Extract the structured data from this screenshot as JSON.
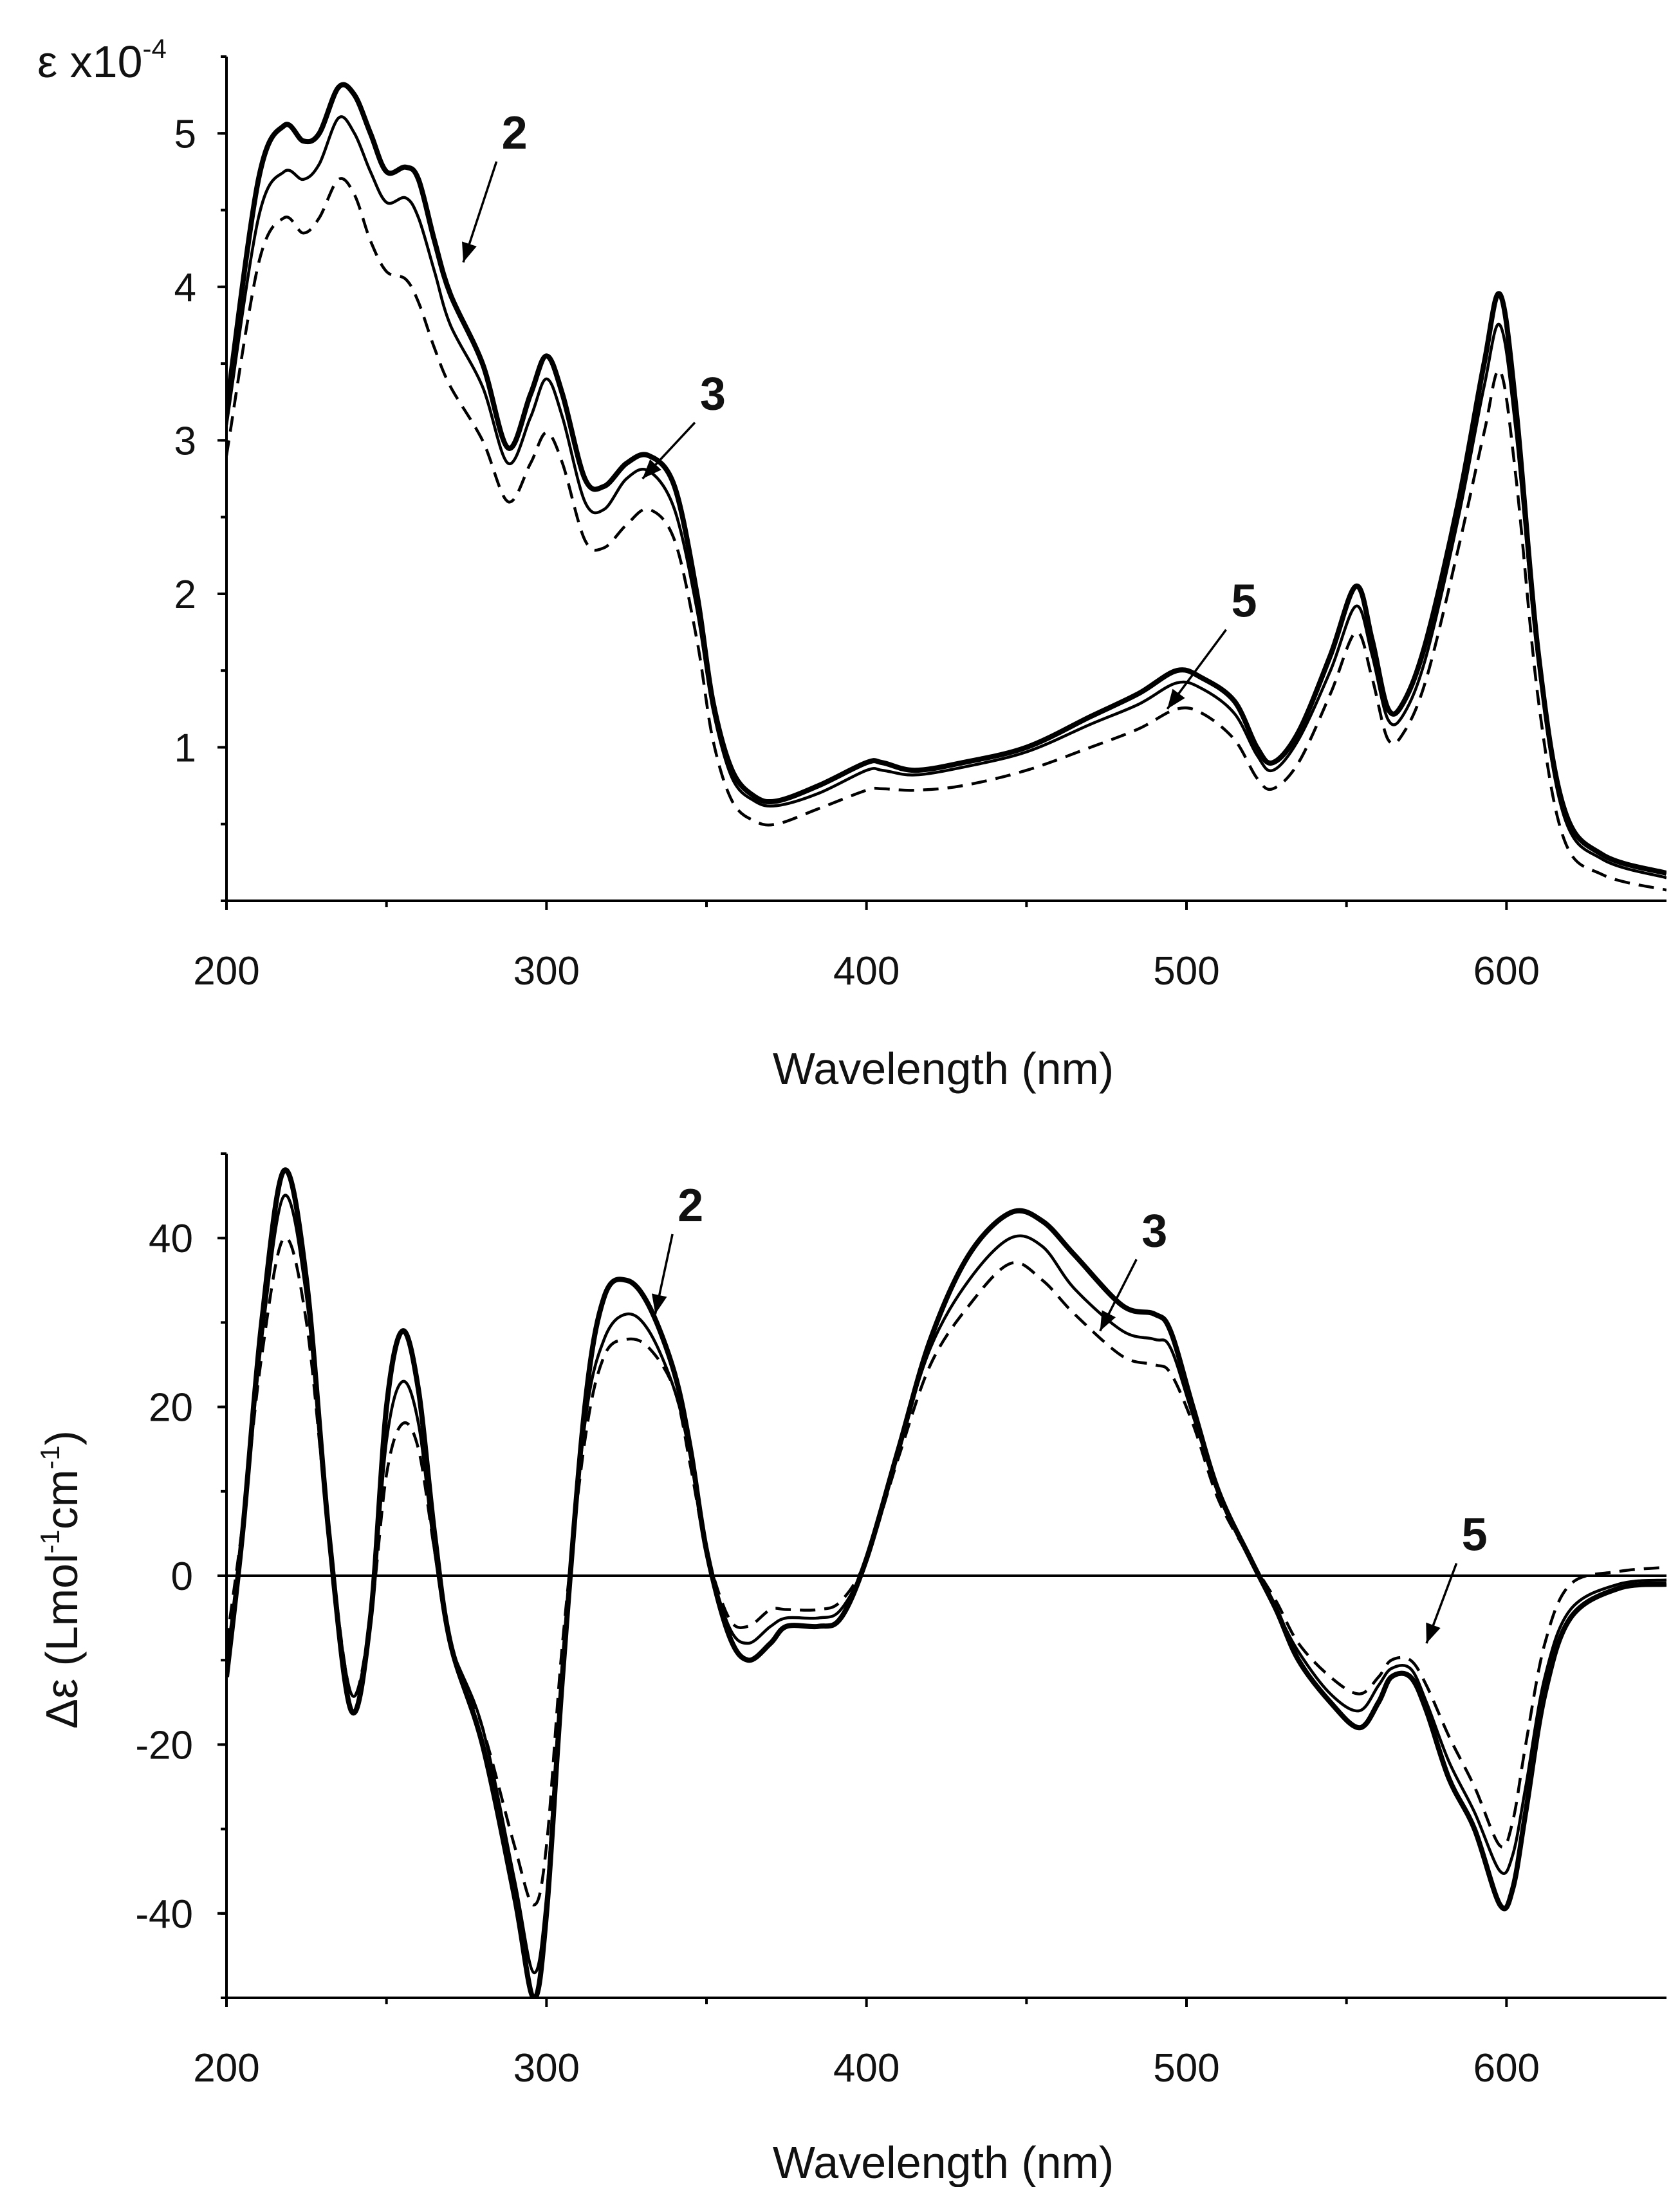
{
  "chart_data": [
    {
      "type": "line",
      "title": "",
      "xlabel": "Wavelength (nm)",
      "ylabel": "ε x10",
      "ylabel_sup": "-4",
      "xlim": [
        200,
        650
      ],
      "ylim": [
        0.0,
        5.5
      ],
      "xticks": [
        200,
        300,
        400,
        500,
        600
      ],
      "yticks": [
        1,
        2,
        3,
        4,
        5
      ],
      "series": [
        {
          "name": "2",
          "style": "thick",
          "x": [
            200,
            210,
            218,
            224,
            229,
            235,
            240,
            245,
            250,
            256,
            260,
            265,
            270,
            280,
            288,
            295,
            300,
            305,
            312,
            318,
            325,
            332,
            340,
            347,
            352,
            358,
            365,
            372,
            385,
            400,
            405,
            415,
            430,
            450,
            470,
            485,
            497,
            505,
            515,
            522,
            527,
            535,
            545,
            553,
            558,
            563,
            568,
            575,
            585,
            593,
            598,
            603,
            610,
            618,
            630,
            650
          ],
          "y": [
            3.2,
            4.7,
            5.05,
            4.95,
            5.0,
            5.3,
            5.25,
            5.0,
            4.75,
            4.78,
            4.7,
            4.3,
            3.95,
            3.5,
            2.95,
            3.3,
            3.55,
            3.3,
            2.75,
            2.7,
            2.85,
            2.9,
            2.7,
            2.0,
            1.3,
            0.85,
            0.68,
            0.65,
            0.75,
            0.9,
            0.9,
            0.85,
            0.9,
            1.0,
            1.2,
            1.35,
            1.5,
            1.45,
            1.3,
            1.0,
            0.9,
            1.1,
            1.6,
            2.05,
            1.7,
            1.25,
            1.3,
            1.7,
            2.6,
            3.5,
            3.95,
            3.2,
            1.6,
            0.6,
            0.3,
            0.18
          ]
        },
        {
          "name": "3",
          "style": "thin",
          "x": [
            200,
            210,
            218,
            224,
            229,
            235,
            240,
            245,
            250,
            256,
            260,
            265,
            270,
            280,
            288,
            295,
            300,
            305,
            312,
            318,
            325,
            332,
            340,
            347,
            352,
            358,
            365,
            372,
            385,
            400,
            405,
            415,
            430,
            450,
            470,
            485,
            497,
            505,
            515,
            522,
            527,
            535,
            545,
            553,
            558,
            563,
            568,
            575,
            585,
            593,
            598,
            603,
            610,
            618,
            630,
            650
          ],
          "y": [
            3.1,
            4.45,
            4.75,
            4.7,
            4.8,
            5.1,
            5.0,
            4.75,
            4.55,
            4.58,
            4.45,
            4.1,
            3.75,
            3.35,
            2.85,
            3.15,
            3.4,
            3.15,
            2.6,
            2.55,
            2.75,
            2.8,
            2.55,
            1.9,
            1.25,
            0.8,
            0.65,
            0.62,
            0.7,
            0.85,
            0.85,
            0.82,
            0.87,
            0.97,
            1.15,
            1.28,
            1.42,
            1.38,
            1.22,
            0.95,
            0.85,
            1.05,
            1.5,
            1.92,
            1.6,
            1.18,
            1.22,
            1.6,
            2.5,
            3.35,
            3.75,
            3.05,
            1.55,
            0.55,
            0.27,
            0.15
          ]
        },
        {
          "name": "5",
          "style": "dashed",
          "x": [
            200,
            210,
            218,
            224,
            229,
            235,
            240,
            245,
            250,
            256,
            260,
            265,
            270,
            280,
            288,
            295,
            300,
            305,
            312,
            318,
            325,
            332,
            340,
            347,
            352,
            358,
            365,
            372,
            385,
            400,
            405,
            415,
            430,
            450,
            470,
            485,
            497,
            505,
            515,
            522,
            527,
            535,
            545,
            553,
            558,
            563,
            568,
            575,
            585,
            593,
            598,
            603,
            610,
            618,
            630,
            650
          ],
          "y": [
            2.9,
            4.15,
            4.45,
            4.35,
            4.45,
            4.7,
            4.6,
            4.3,
            4.1,
            4.05,
            3.9,
            3.6,
            3.35,
            3.0,
            2.6,
            2.85,
            3.05,
            2.85,
            2.35,
            2.3,
            2.45,
            2.55,
            2.35,
            1.7,
            1.05,
            0.65,
            0.52,
            0.5,
            0.6,
            0.72,
            0.73,
            0.72,
            0.75,
            0.85,
            1.0,
            1.12,
            1.25,
            1.22,
            1.05,
            0.8,
            0.73,
            0.9,
            1.35,
            1.75,
            1.45,
            1.05,
            1.1,
            1.45,
            2.3,
            3.05,
            3.45,
            2.75,
            1.3,
            0.4,
            0.17,
            0.07
          ]
        }
      ],
      "annotations": [
        {
          "text": "2",
          "x": 290,
          "y": 4.9,
          "arrow_to": [
            274,
            4.16
          ]
        },
        {
          "text": "3",
          "x": 352,
          "y": 3.2,
          "arrow_to": [
            330,
            2.75
          ]
        },
        {
          "text": "5",
          "x": 518,
          "y": 1.85,
          "arrow_to": [
            494,
            1.25
          ]
        }
      ]
    },
    {
      "type": "line",
      "title": "",
      "xlabel": "Wavelength (nm)",
      "ylabel": "Δε (Lmol",
      "ylabel_sup1": "-1",
      "ylabel_mid": "cm",
      "ylabel_sup2": "-1",
      "ylabel_end": ")",
      "xlim": [
        200,
        650
      ],
      "ylim": [
        -50,
        50
      ],
      "xticks": [
        200,
        300,
        400,
        500,
        600
      ],
      "yticks": [
        -40,
        -20,
        0,
        20,
        40
      ],
      "zero_line": true,
      "series": [
        {
          "name": "2",
          "style": "thick",
          "x": [
            200,
            205,
            211,
            218,
            225,
            232,
            239,
            245,
            250,
            255,
            260,
            265,
            270,
            280,
            290,
            296,
            300,
            305,
            312,
            318,
            325,
            332,
            340,
            345,
            350,
            357,
            363,
            370,
            375,
            385,
            392,
            400,
            410,
            420,
            432,
            445,
            455,
            465,
            480,
            490,
            495,
            502,
            510,
            520,
            528,
            535,
            545,
            554,
            560,
            564,
            570,
            575,
            582,
            590,
            598,
            602,
            606,
            612,
            620,
            635,
            650
          ],
          "y": [
            -12,
            5,
            30,
            48,
            35,
            5,
            -16,
            -5,
            20,
            29,
            22,
            5,
            -8,
            -20,
            -38,
            -50,
            -40,
            -12,
            20,
            33,
            35,
            32,
            24,
            15,
            3,
            -7,
            -10,
            -8,
            -6,
            -6,
            -5,
            2,
            15,
            28,
            38,
            43,
            42,
            38,
            32,
            31,
            29,
            20,
            10,
            2,
            -4,
            -10,
            -15,
            -18,
            -15,
            -12,
            -12,
            -16,
            -24,
            -30,
            -39,
            -37,
            -28,
            -14,
            -5,
            -1.5,
            -1
          ]
        },
        {
          "name": "3",
          "style": "thin",
          "x": [
            200,
            205,
            211,
            218,
            225,
            232,
            239,
            245,
            250,
            255,
            260,
            265,
            270,
            280,
            290,
            296,
            300,
            305,
            312,
            318,
            325,
            332,
            340,
            345,
            350,
            357,
            363,
            370,
            375,
            385,
            392,
            400,
            410,
            420,
            432,
            445,
            455,
            465,
            480,
            490,
            495,
            502,
            510,
            520,
            528,
            535,
            545,
            554,
            560,
            564,
            570,
            575,
            582,
            590,
            598,
            602,
            606,
            612,
            620,
            635,
            650
          ],
          "y": [
            -10,
            5,
            28,
            45,
            33,
            5,
            -14,
            -5,
            16,
            23,
            18,
            3,
            -8,
            -18,
            -36,
            -47,
            -38,
            -10,
            18,
            28,
            31,
            29,
            22,
            14,
            3,
            -6,
            -8,
            -6,
            -5,
            -5,
            -4,
            2,
            15,
            27,
            35,
            40,
            39,
            34,
            29,
            28,
            27,
            19,
            10,
            2,
            -4,
            -9,
            -14,
            -16,
            -13,
            -11,
            -11,
            -15,
            -22,
            -28,
            -35,
            -33,
            -25,
            -12,
            -4,
            -1,
            -0.5
          ]
        },
        {
          "name": "5",
          "style": "dashed",
          "x": [
            200,
            205,
            211,
            218,
            225,
            232,
            239,
            245,
            250,
            255,
            260,
            265,
            270,
            280,
            290,
            296,
            300,
            305,
            312,
            318,
            325,
            332,
            340,
            345,
            350,
            357,
            363,
            370,
            375,
            385,
            392,
            400,
            410,
            420,
            432,
            445,
            455,
            465,
            480,
            490,
            495,
            502,
            510,
            520,
            528,
            535,
            545,
            554,
            560,
            564,
            570,
            575,
            582,
            590,
            598,
            602,
            606,
            612,
            620,
            635,
            650
          ],
          "y": [
            -8,
            6,
            26,
            40,
            30,
            5,
            -14,
            -5,
            12,
            18,
            15,
            3,
            -8,
            -18,
            -32,
            -39,
            -32,
            -8,
            16,
            26,
            28,
            27,
            22,
            13,
            3,
            -5,
            -6,
            -4,
            -4,
            -4,
            -3,
            2,
            14,
            25,
            32,
            37,
            35,
            31,
            26,
            25,
            24,
            18,
            9,
            2,
            -3,
            -8,
            -12,
            -14,
            -12,
            -10,
            -10,
            -13,
            -19,
            -25,
            -32,
            -29,
            -20,
            -8,
            -1,
            0.5,
            1
          ]
        }
      ],
      "annotations": [
        {
          "text": "2",
          "x": 345,
          "y": 42,
          "arrow_to": [
            334,
            31
          ]
        },
        {
          "text": "3",
          "x": 490,
          "y": 39,
          "arrow_to": [
            473,
            29
          ]
        },
        {
          "text": "5",
          "x": 590,
          "y": 3,
          "arrow_to": [
            575,
            -8
          ]
        }
      ]
    }
  ]
}
